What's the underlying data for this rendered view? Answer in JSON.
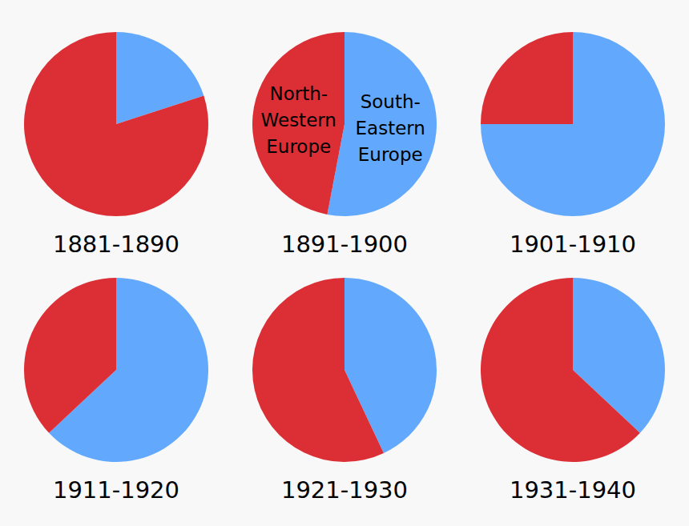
{
  "chart_data": [
    {
      "type": "pie",
      "title": "1881-1890",
      "categories": [
        null,
        null
      ],
      "values": [
        20,
        80
      ],
      "colors": [
        "#62a8fd",
        "#dc2f35"
      ]
    },
    {
      "type": "pie",
      "title": "1891-1900",
      "categories": [
        "South-Eastern Europe",
        "North-Western Europe"
      ],
      "values": [
        53,
        47
      ],
      "colors": [
        "#62a8fd",
        "#dc2f35"
      ]
    },
    {
      "type": "pie",
      "title": "1901-1910",
      "categories": [
        null,
        null
      ],
      "values": [
        75,
        25
      ],
      "colors": [
        "#62a8fd",
        "#dc2f35"
      ]
    },
    {
      "type": "pie",
      "title": "1911-1920",
      "categories": [
        null,
        null
      ],
      "values": [
        63,
        37
      ],
      "colors": [
        "#62a8fd",
        "#dc2f35"
      ]
    },
    {
      "type": "pie",
      "title": "1921-1930",
      "categories": [
        null,
        null
      ],
      "values": [
        43,
        57
      ],
      "colors": [
        "#62a8fd",
        "#dc2f35"
      ]
    },
    {
      "type": "pie",
      "title": "1931-1940",
      "categories": [
        null,
        null
      ],
      "values": [
        37,
        63
      ],
      "colors": [
        "#62a8fd",
        "#dc2f35"
      ]
    }
  ]
}
